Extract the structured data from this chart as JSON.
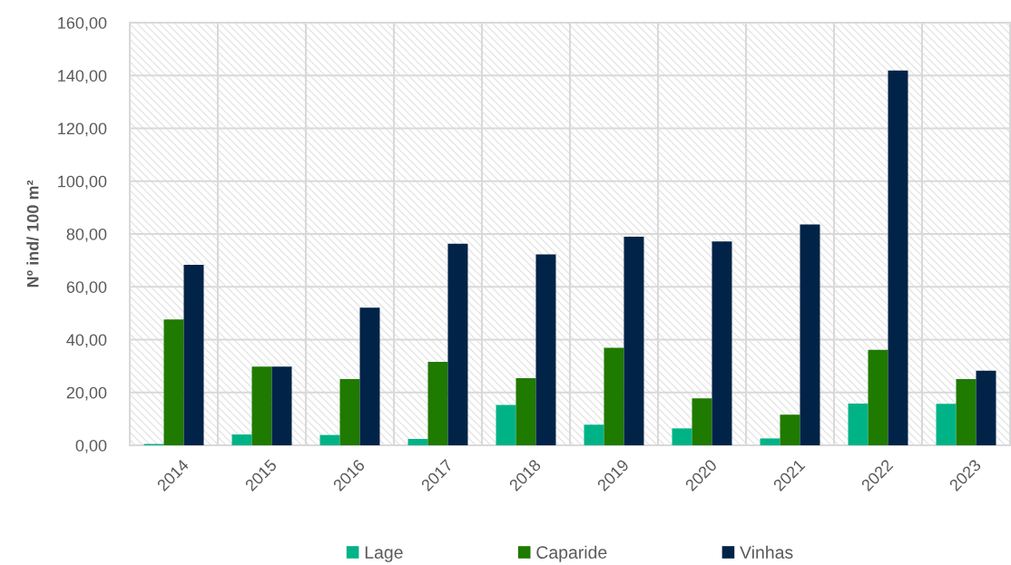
{
  "chart_data": {
    "type": "bar",
    "ylabel": "Nº ind/ 100 m²",
    "categories": [
      "2014",
      "2015",
      "2016",
      "2017",
      "2018",
      "2019",
      "2020",
      "2021",
      "2022",
      "2023"
    ],
    "series": [
      {
        "name": "Lage",
        "color": "#00b386",
        "values": [
          0.5,
          4.1,
          3.9,
          2.4,
          15.3,
          7.8,
          6.4,
          2.6,
          15.8,
          15.7
        ]
      },
      {
        "name": "Caparide",
        "color": "#1f7a00",
        "values": [
          47.6,
          29.8,
          25.1,
          31.6,
          25.4,
          36.9,
          17.8,
          11.6,
          36.1,
          25.1
        ]
      },
      {
        "name": "Vinhas",
        "color": "#002347",
        "values": [
          68.3,
          29.8,
          52.1,
          76.3,
          72.3,
          79.0,
          77.2,
          83.6,
          141.9,
          28.2
        ]
      }
    ],
    "ylim": [
      0,
      160
    ],
    "yticks": [
      {
        "value": 0,
        "label": "0,00"
      },
      {
        "value": 20,
        "label": "20,00"
      },
      {
        "value": 40,
        "label": "40,00"
      },
      {
        "value": 60,
        "label": "60,00"
      },
      {
        "value": 80,
        "label": "80,00"
      },
      {
        "value": 100,
        "label": "100,00"
      },
      {
        "value": 120,
        "label": "120,00"
      },
      {
        "value": 140,
        "label": "140,00"
      },
      {
        "value": 160,
        "label": "160,00"
      }
    ],
    "grid": true,
    "legend": "bottom"
  }
}
